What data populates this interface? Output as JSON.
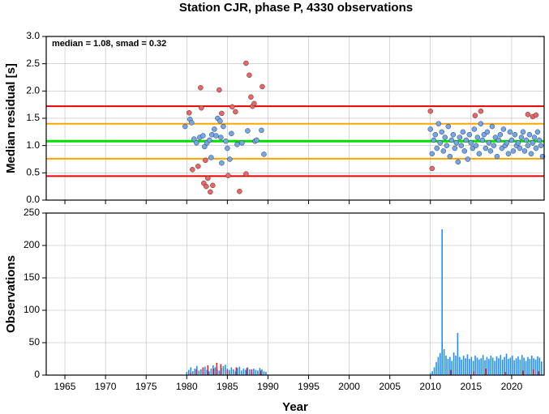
{
  "chart_data": [
    {
      "type": "scatter",
      "title": "Station CJR, phase P, 4330 observations",
      "annotation": "median = 1.08, smad = 0.32",
      "ylabel": "Median residual [s]",
      "xlim": [
        1962.7,
        2024
      ],
      "xticks": [
        1965,
        1970,
        1975,
        1980,
        1985,
        1990,
        1995,
        2000,
        2005,
        2010,
        2015,
        2020
      ],
      "ylim": [
        0,
        3
      ],
      "yticks": [
        {
          "value": 0,
          "label": "0.0"
        },
        {
          "value": 0.5,
          "label": "0.5"
        },
        {
          "value": 1,
          "label": "1.0"
        },
        {
          "value": 1.5,
          "label": "1.5"
        },
        {
          "value": 2,
          "label": "2.0"
        },
        {
          "value": 2.5,
          "label": "2.5"
        },
        {
          "value": 3,
          "label": "3.0"
        }
      ],
      "grid": true,
      "hlines": [
        {
          "value": 1.72,
          "color": "#e80000"
        },
        {
          "value": 1.4,
          "color": "#ffa500"
        },
        {
          "value": 1.08,
          "color": "#00e000"
        },
        {
          "value": 0.76,
          "color": "#ffa500"
        },
        {
          "value": 0.44,
          "color": "#e80000"
        }
      ],
      "series": [
        {
          "color": "#70a8f0",
          "x": [
            1979.8,
            1980.4,
            1980.6,
            1980.9,
            1981.2,
            1981.6,
            1982,
            1982.2,
            1982.5,
            1982.8,
            1983.1,
            1983.4,
            1983.6,
            1983.8,
            1984.1,
            1984.2,
            1984.5,
            1984.8,
            1985,
            1985.3,
            1985.5,
            1986.2,
            1986.8,
            1987.5,
            1988.4,
            1988.6,
            1989.2,
            1989.5,
            1984.3,
            1983,
            2010,
            2010.2,
            2010.4,
            2010.6,
            2010.8,
            2011,
            2011.2,
            2011.4,
            2011.6,
            2011.8,
            2012,
            2012.2,
            2012.4,
            2012.6,
            2012.8,
            2013,
            2013.2,
            2013.4,
            2013.6,
            2013.8,
            2014,
            2014.2,
            2014.4,
            2014.6,
            2014.8,
            2015,
            2015.2,
            2015.4,
            2015.6,
            2015.8,
            2016,
            2016.2,
            2016.4,
            2016.6,
            2016.8,
            2017,
            2017.2,
            2017.4,
            2017.6,
            2017.8,
            2018,
            2018.2,
            2018.4,
            2018.6,
            2018.8,
            2019,
            2019.2,
            2019.4,
            2019.6,
            2019.8,
            2020,
            2020.2,
            2020.4,
            2020.6,
            2020.8,
            2021,
            2021.2,
            2021.4,
            2021.6,
            2021.8,
            2022,
            2022.2,
            2022.4,
            2022.6,
            2022.8,
            2023,
            2023.2,
            2023.4,
            2023.6,
            2023.8
          ],
          "values": [
            1.35,
            1.48,
            1.42,
            1.12,
            1.05,
            1.15,
            1.18,
            0.98,
            1.05,
            1.1,
            1.2,
            1.3,
            1.18,
            1.5,
            1.45,
            1.15,
            1.35,
            1.08,
            0.95,
            0.75,
            1.22,
            1.02,
            1.05,
            1.27,
            1.08,
            1.1,
            1.28,
            0.84,
            0.68,
            0.78,
            1.3,
            0.85,
            1.1,
            1.2,
            0.95,
            1.4,
            1.05,
            1.25,
            0.9,
            1.15,
            1.0,
            1.35,
            0.8,
            1.1,
            1.2,
            0.95,
            1.05,
            0.7,
            1.15,
            1.0,
            1.25,
            0.9,
            1.1,
            0.75,
            1.2,
            1.05,
            0.95,
            1.3,
            1.0,
            1.15,
            0.85,
            1.4,
            1.1,
            1.2,
            0.95,
            1.25,
            1.05,
            0.9,
            1.35,
            1.0,
            1.15,
            0.8,
            1.1,
            1.2,
            0.95,
            1.3,
            1.0,
            1.05,
            0.85,
            1.25,
            1.1,
            0.9,
            1.2,
            1.0,
            1.05,
            0.95,
            1.15,
            1.25,
            0.9,
            1.1,
            1.0,
            1.2,
            0.85,
            1.05,
            1.15,
            0.95,
            1.25,
            1.1,
            1.0,
            0.8
          ]
        },
        {
          "color": "#f06464",
          "x": [
            1980.3,
            1980.7,
            1981.4,
            1981.7,
            1981.8,
            1982.1,
            1982.4,
            1982.6,
            1982.9,
            1983.2,
            1982.3,
            1984,
            1984.3,
            1985.1,
            1986,
            1986.5,
            1987.3,
            1987.7,
            1987.9,
            1988.1,
            1988.3,
            1987.3,
            1989.3,
            1985.6,
            2010,
            2010.2,
            2015.5,
            2016.2,
            2022,
            2022.6,
            2023
          ],
          "values": [
            1.6,
            0.56,
            0.62,
            2.06,
            1.69,
            0.31,
            0.25,
            0.4,
            0.15,
            0.27,
            0.73,
            2.02,
            1.59,
            0.45,
            1.62,
            0.16,
            2.51,
            2.29,
            1.89,
            1.72,
            1.77,
            0.48,
            2.08,
            1.71,
            1.63,
            0.58,
            1.55,
            1.63,
            1.57,
            1.53,
            1.56
          ]
        }
      ]
    },
    {
      "type": "bar",
      "xlabel": "Year",
      "ylabel": "Observations",
      "xlim": [
        1962.7,
        2024
      ],
      "xticks": [
        1965,
        1970,
        1975,
        1980,
        1985,
        1990,
        1995,
        2000,
        2005,
        2010,
        2015,
        2020
      ],
      "ylim": [
        0,
        250
      ],
      "yticks": [
        0,
        50,
        100,
        150,
        200,
        250
      ],
      "grid": true,
      "series": [
        {
          "color": "#1e8fff",
          "x": [
            1980,
            1980.25,
            1980.5,
            1980.75,
            1981,
            1981.25,
            1981.5,
            1981.75,
            1982,
            1982.25,
            1982.5,
            1982.75,
            1983,
            1983.25,
            1983.5,
            1983.75,
            1984,
            1984.25,
            1984.5,
            1984.75,
            1985,
            1985.25,
            1985.5,
            1985.75,
            1986,
            1986.25,
            1986.5,
            1986.75,
            1987,
            1987.25,
            1987.5,
            1987.75,
            1988,
            1988.25,
            1988.5,
            1988.75,
            1989,
            1989.25,
            1989.5,
            1989.75,
            2010,
            2010.24,
            2010.48,
            2010.72,
            2010.96,
            2011.2,
            2011.44,
            2011.68,
            2011.92,
            2012.16,
            2012.4,
            2012.64,
            2012.88,
            2013.12,
            2013.36,
            2013.6,
            2013.84,
            2014.08,
            2014.32,
            2014.56,
            2014.8,
            2015.04,
            2015.28,
            2015.52,
            2015.76,
            2016,
            2016.24,
            2016.48,
            2016.72,
            2016.96,
            2017.2,
            2017.44,
            2017.68,
            2017.92,
            2018.16,
            2018.4,
            2018.64,
            2018.88,
            2019.12,
            2019.36,
            2019.6,
            2019.84,
            2020.08,
            2020.32,
            2020.56,
            2020.8,
            2021.04,
            2021.28,
            2021.52,
            2021.76,
            2022,
            2022.24,
            2022.48,
            2022.72,
            2022.96,
            2023.2,
            2023.44,
            2023.68
          ],
          "values": [
            5,
            8,
            12,
            6,
            10,
            14,
            7,
            9,
            11,
            13,
            8,
            6,
            10,
            15,
            12,
            9,
            7,
            11,
            14,
            16,
            10,
            8,
            12,
            9,
            6,
            11,
            13,
            7,
            10,
            8,
            12,
            9,
            6,
            10,
            8,
            7,
            11,
            9,
            6,
            5,
            3,
            6,
            12,
            20,
            28,
            34,
            225,
            40,
            30,
            25,
            28,
            22,
            35,
            30,
            65,
            28,
            24,
            30,
            26,
            32,
            25,
            28,
            22,
            30,
            27,
            24,
            26,
            31,
            23,
            28,
            25,
            30,
            27,
            22,
            29,
            26,
            31,
            24,
            28,
            33,
            25,
            27,
            30,
            23,
            26,
            29,
            24,
            31,
            27,
            22,
            28,
            25,
            30,
            26,
            24,
            29,
            27,
            21
          ]
        },
        {
          "color": "#e02020",
          "x": [
            1980.5,
            1981.2,
            1982,
            1982.6,
            1983.3,
            1983.7,
            1984.2,
            1985,
            1986.1,
            1987.4,
            1988,
            1989.1,
            2012.5,
            2015.3,
            2016.8,
            2019.2,
            2021.4,
            2022.7,
            2023.3
          ],
          "values": [
            4,
            9,
            12,
            15,
            10,
            19,
            17,
            8,
            12,
            11,
            9,
            7,
            8,
            6,
            10,
            5,
            7,
            9,
            6
          ]
        }
      ]
    }
  ]
}
